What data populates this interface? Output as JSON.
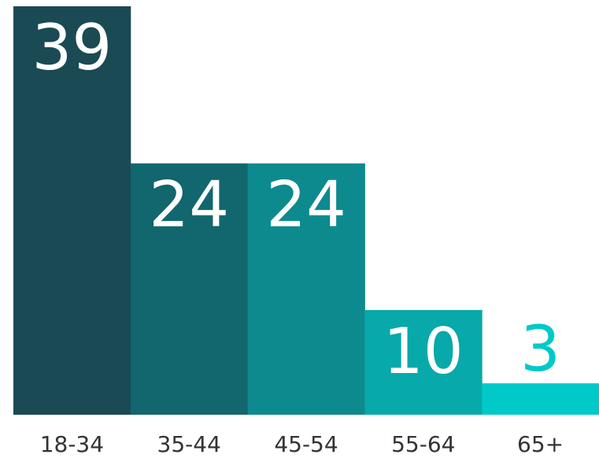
{
  "chart_data": {
    "type": "bar",
    "title": "",
    "xlabel": "",
    "ylabel": "",
    "categories": [
      "18-34",
      "35-44",
      "45-54",
      "55-64",
      "65+"
    ],
    "values": [
      39,
      24,
      24,
      10,
      3
    ],
    "colors": [
      "#1a4a54",
      "#12666d",
      "#0d8a8e",
      "#08a9aa",
      "#00c9c9"
    ],
    "label_color_inside": "#ffffff",
    "grid": false,
    "legend": "none",
    "ylim": [
      0,
      39
    ]
  }
}
